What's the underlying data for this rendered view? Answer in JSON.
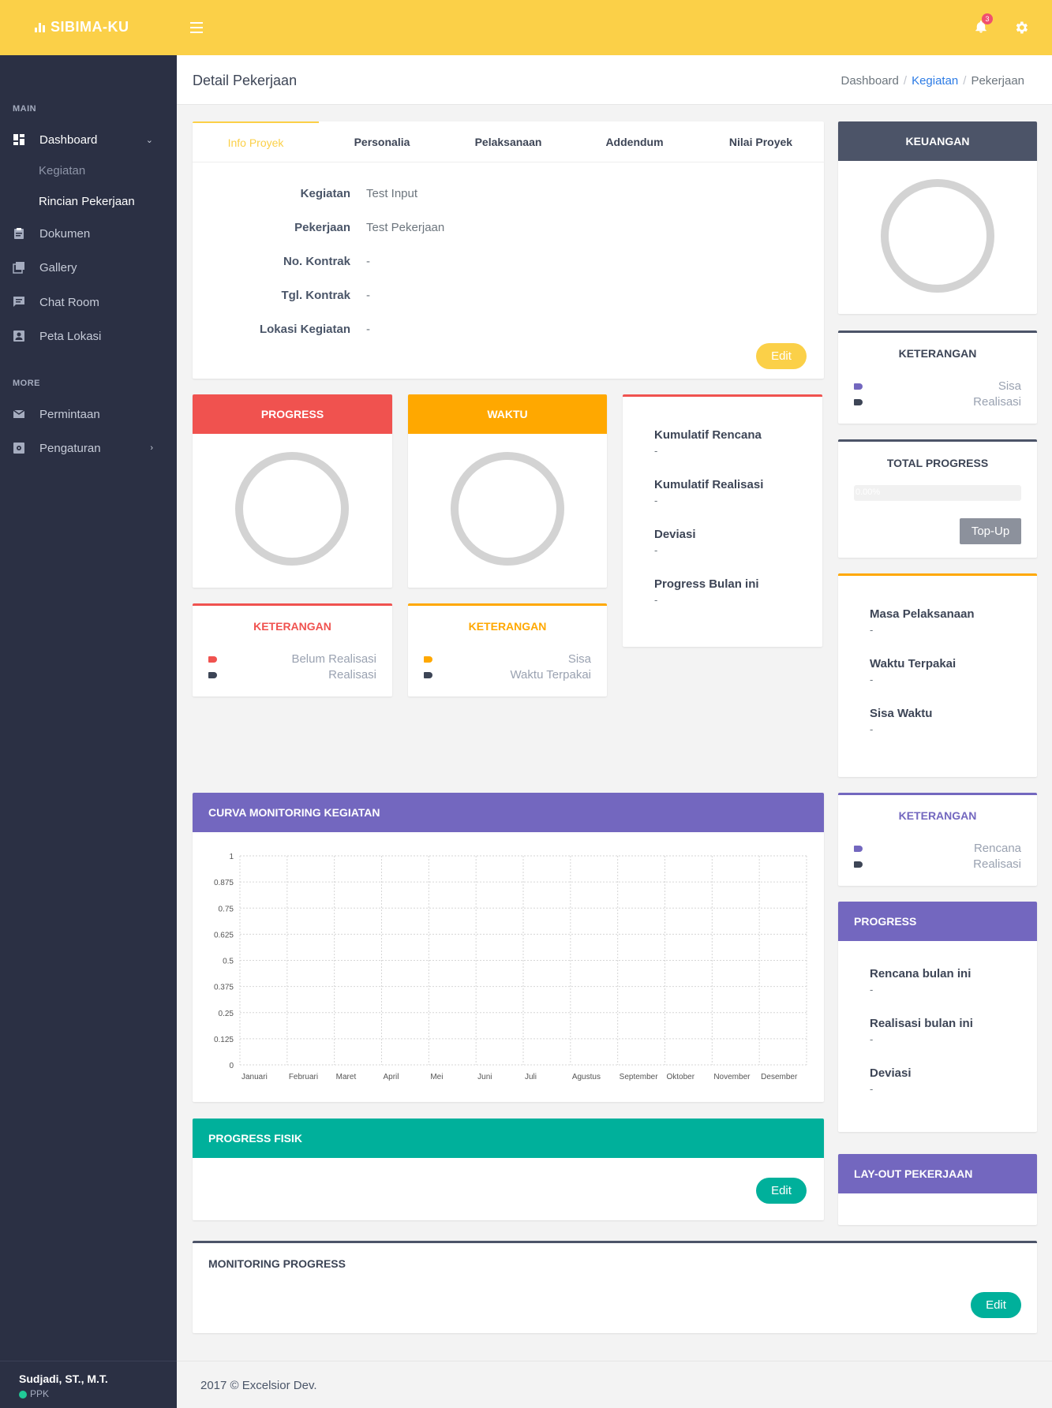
{
  "app": {
    "brand": "SIBIMA-KU",
    "notification_count": "3"
  },
  "colors": {
    "topbar": "#fbd048",
    "sidebar": "#2b3044",
    "red": "#f0524f",
    "orange": "#ffa800",
    "purple": "#7367bf",
    "teal": "#00b09b",
    "dark": "#4c5468",
    "ring": "#d3d3d3"
  },
  "sidebar": {
    "section_main": "MAIN",
    "dashboard": "Dashboard",
    "sub_kegiatan": "Kegiatan",
    "sub_rincian": "Rincian Pekerjaan",
    "dokumen": "Dokumen",
    "gallery": "Gallery",
    "chat_room": "Chat Room",
    "peta_lokasi": "Peta Lokasi",
    "section_more": "MORE",
    "permintaan": "Permintaan",
    "pengaturan": "Pengaturan",
    "user_name": "Sudjadi, ST., M.T.",
    "user_role": "PPK"
  },
  "header": {
    "title": "Detail Pekerjaan",
    "breadcrumb": [
      "Dashboard",
      "Kegiatan",
      "Pekerjaan"
    ]
  },
  "tabs": [
    "Info Proyek",
    "Personalia",
    "Pelaksanaan",
    "Addendum",
    "Nilai Proyek"
  ],
  "info": [
    {
      "label": "Kegiatan",
      "value": "Test Input"
    },
    {
      "label": "Pekerjaan",
      "value": "Test Pekerjaan"
    },
    {
      "label": "No. Kontrak",
      "value": "-"
    },
    {
      "label": "Tgl. Kontrak",
      "value": "-"
    },
    {
      "label": "Lokasi Kegiatan",
      "value": "-"
    }
  ],
  "buttons": {
    "edit": "Edit",
    "topup": "Top-Up"
  },
  "progress_card": {
    "title": "PROGRESS",
    "legend_title": "KETERANGAN",
    "legend": [
      "Belum Realisasi",
      "Realisasi"
    ]
  },
  "waktu_card": {
    "title": "WAKTU",
    "legend_title": "KETERANGAN",
    "legend": [
      "Sisa",
      "Waktu Terpakai"
    ]
  },
  "kumulatif": [
    {
      "label": "Kumulatif Rencana",
      "value": "-"
    },
    {
      "label": "Kumulatif Realisasi",
      "value": "-"
    },
    {
      "label": "Deviasi",
      "value": "-"
    },
    {
      "label": "Progress Bulan ini",
      "value": "-"
    }
  ],
  "keuangan": {
    "title": "KEUANGAN",
    "legend_title": "KETERANGAN",
    "legend": [
      "Sisa",
      "Realisasi"
    ]
  },
  "total_progress": {
    "title": "TOTAL PROGRESS",
    "bar_text": "0.00%",
    "value": 0
  },
  "masa": [
    {
      "label": "Masa Pelaksanaan",
      "value": "-"
    },
    {
      "label": "Waktu Terpakai",
      "value": "-"
    },
    {
      "label": "Sisa Waktu",
      "value": "-"
    }
  ],
  "curva_legend": {
    "title": "KETERANGAN",
    "legend": [
      "Rencana",
      "Realisasi"
    ]
  },
  "progress_right": {
    "title": "PROGRESS",
    "items": [
      {
        "label": "Rencana bulan ini",
        "value": "-"
      },
      {
        "label": "Realisasi bulan ini",
        "value": "-"
      },
      {
        "label": "Deviasi",
        "value": "-"
      }
    ]
  },
  "layout_card": {
    "title": "LAY-OUT PEKERJAAN"
  },
  "curva": {
    "title": "CURVA MONITORING KEGIATAN"
  },
  "chart_data": {
    "type": "line",
    "categories": [
      "Januari",
      "Februari",
      "Maret",
      "April",
      "Mei",
      "Juni",
      "Juli",
      "Agustus",
      "September",
      "Oktober",
      "November",
      "Desember"
    ],
    "yticks": [
      "1",
      "0.875",
      "0.75",
      "0.625",
      "0.5",
      "0.375",
      "0.25",
      "0.125",
      "0"
    ],
    "ylim": [
      0,
      1
    ],
    "grid": true,
    "series": []
  },
  "progress_fisik": {
    "title": "PROGRESS FISIK"
  },
  "monitoring": {
    "title": "MONITORING PROGRESS"
  },
  "footer": {
    "text": "2017 © Excelsior Dev."
  }
}
